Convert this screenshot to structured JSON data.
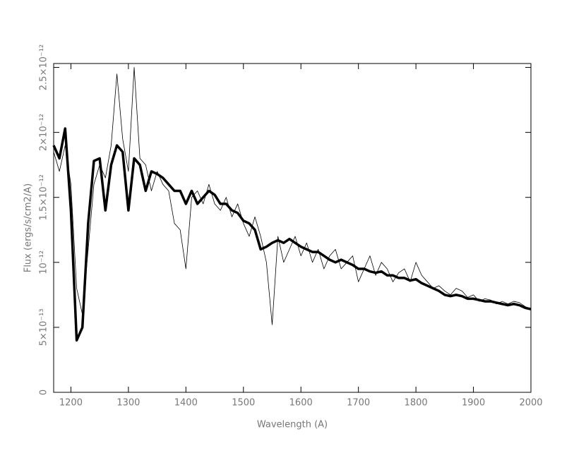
{
  "chart_data": {
    "type": "line",
    "x_label": "Wavelength (A)",
    "y_label": "Flux (ergs/s/cm2/A)",
    "x": [
      1170,
      1180,
      1190,
      1200,
      1210,
      1220,
      1230,
      1240,
      1250,
      1260,
      1270,
      1280,
      1290,
      1300,
      1310,
      1320,
      1330,
      1340,
      1350,
      1360,
      1370,
      1380,
      1390,
      1400,
      1410,
      1420,
      1430,
      1440,
      1450,
      1460,
      1470,
      1480,
      1490,
      1500,
      1510,
      1520,
      1530,
      1540,
      1550,
      1560,
      1570,
      1580,
      1590,
      1600,
      1610,
      1620,
      1630,
      1640,
      1650,
      1660,
      1670,
      1680,
      1690,
      1700,
      1710,
      1720,
      1730,
      1740,
      1750,
      1760,
      1770,
      1780,
      1790,
      1800,
      1810,
      1820,
      1830,
      1840,
      1850,
      1860,
      1870,
      1880,
      1890,
      1900,
      1910,
      1920,
      1930,
      1940,
      1950,
      1960,
      1970,
      1980,
      1990,
      2000
    ],
    "series": [
      {
        "color": "#000000",
        "values": [
          1.85e-12,
          1.7e-12,
          1.9e-12,
          1.6e-12,
          8e-13,
          6e-13,
          1.1e-12,
          1.6e-12,
          1.75e-12,
          1.65e-12,
          1.9e-12,
          2.45e-12,
          1.95e-12,
          1.7e-12,
          2.5e-12,
          1.8e-12,
          1.75e-12,
          1.55e-12,
          1.7e-12,
          1.6e-12,
          1.55e-12,
          1.3e-12,
          1.25e-12,
          9.5e-13,
          1.5e-12,
          1.55e-12,
          1.45e-12,
          1.6e-12,
          1.45e-12,
          1.4e-12,
          1.5e-12,
          1.35e-12,
          1.45e-12,
          1.3e-12,
          1.2e-12,
          1.35e-12,
          1.2e-12,
          1e-12,
          5.2e-13,
          1.2e-12,
          1e-12,
          1.1e-12,
          1.2e-12,
          1.05e-12,
          1.15e-12,
          1e-12,
          1.1e-12,
          9.5e-13,
          1.05e-12,
          1.1e-12,
          9.5e-13,
          1e-12,
          1.05e-12,
          8.5e-13,
          9.5e-13,
          1.05e-12,
          9e-13,
          1e-12,
          9.5e-13,
          8.5e-13,
          9.2e-13,
          9.5e-13,
          8.5e-13,
          1e-12,
          9e-13,
          8.5e-13,
          8e-13,
          8.2e-13,
          7.8e-13,
          7.5e-13,
          8e-13,
          7.8e-13,
          7.3e-13,
          7.5e-13,
          7e-13,
          7.2e-13,
          7.1e-13,
          6.8e-13,
          7e-13,
          6.8e-13,
          7e-13,
          6.9e-13,
          6.6e-13,
          6.4e-13
        ]
      },
      {
        "color": "#000000",
        "values": [
          1.9e-12,
          1.8e-12,
          2.03e-12,
          1.4e-12,
          4e-13,
          5e-13,
          1.3e-12,
          1.78e-12,
          1.8e-12,
          1.4e-12,
          1.75e-12,
          1.9e-12,
          1.85e-12,
          1.4e-12,
          1.8e-12,
          1.75e-12,
          1.55e-12,
          1.7e-12,
          1.68e-12,
          1.65e-12,
          1.6e-12,
          1.55e-12,
          1.55e-12,
          1.45e-12,
          1.55e-12,
          1.45e-12,
          1.5e-12,
          1.55e-12,
          1.52e-12,
          1.45e-12,
          1.45e-12,
          1.4e-12,
          1.38e-12,
          1.32e-12,
          1.3e-12,
          1.25e-12,
          1.1e-12,
          1.12e-12,
          1.15e-12,
          1.17e-12,
          1.15e-12,
          1.18e-12,
          1.15e-12,
          1.12e-12,
          1.1e-12,
          1.08e-12,
          1.08e-12,
          1.05e-12,
          1.02e-12,
          1e-12,
          1.02e-12,
          1e-12,
          9.8e-13,
          9.5e-13,
          9.5e-13,
          9.3e-13,
          9.2e-13,
          9.3e-13,
          9e-13,
          9e-13,
          8.8e-13,
          8.8e-13,
          8.6e-13,
          8.7e-13,
          8.4e-13,
          8.2e-13,
          8e-13,
          7.8e-13,
          7.5e-13,
          7.4e-13,
          7.5e-13,
          7.4e-13,
          7.2e-13,
          7.2e-13,
          7.1e-13,
          7e-13,
          7e-13,
          6.9e-13,
          6.8e-13,
          6.7e-13,
          6.8e-13,
          6.7e-13,
          6.5e-13,
          6.4e-13
        ]
      }
    ],
    "xlim": [
      1170,
      2000
    ],
    "xticks": [
      1200,
      1300,
      1400,
      1500,
      1600,
      1700,
      1800,
      1900,
      2000
    ],
    "ylim": [
      0,
      2.53e-12
    ],
    "yticks": [
      0,
      {
        "value": 5e-13,
        "label": "5×10⁻¹³"
      },
      {
        "value": 1e-12,
        "label": "10⁻¹²"
      },
      {
        "value": 1.5e-12,
        "label": "1.5×10⁻¹²"
      },
      {
        "value": 2e-12,
        "label": "2×10⁻¹²"
      },
      {
        "value": 2.5e-12,
        "label": "2.5×10⁻¹²"
      }
    ]
  }
}
